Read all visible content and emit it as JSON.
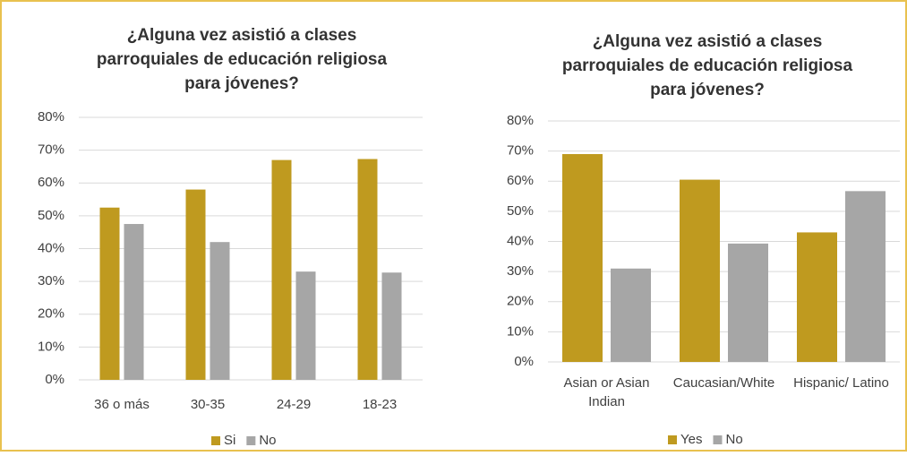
{
  "chart_data": [
    {
      "type": "bar",
      "title": "¿Alguna vez asistió a clases parroquiales de educación religiosa para jóvenes?",
      "categories": [
        "36 o más",
        "30-35",
        "24-29",
        "18-23"
      ],
      "series": [
        {
          "name": "Si",
          "color": "#bf9a1f",
          "values": [
            52.5,
            58,
            67,
            67.3
          ]
        },
        {
          "name": "No",
          "color": "#a6a6a6",
          "values": [
            47.5,
            42,
            33,
            32.7
          ]
        }
      ],
      "ylim": [
        0,
        80
      ],
      "yticks": [
        {
          "value": 0,
          "label": "0%"
        },
        {
          "value": 10,
          "label": "10%"
        },
        {
          "value": 20,
          "label": "20%"
        },
        {
          "value": 30,
          "label": "30%"
        },
        {
          "value": 40,
          "label": "40%"
        },
        {
          "value": 50,
          "label": "50%"
        },
        {
          "value": 60,
          "label": "60%"
        },
        {
          "value": 70,
          "label": "70%"
        },
        {
          "value": 80,
          "label": "80%"
        }
      ],
      "grid": true,
      "legend": "bottom"
    },
    {
      "type": "bar",
      "title": "¿Alguna vez asistió a clases parroquiales de educación religiosa para jóvenes?",
      "categories": [
        "Asian or Asian Indian",
        "Caucasian/White",
        "Hispanic/ Latino"
      ],
      "series": [
        {
          "name": "Yes",
          "color": "#bf9a1f",
          "values": [
            69,
            60.5,
            43
          ]
        },
        {
          "name": "No",
          "color": "#a6a6a6",
          "values": [
            31,
            39.3,
            56.7
          ]
        }
      ],
      "ylim": [
        0,
        80
      ],
      "yticks": [
        {
          "value": 0,
          "label": "0%"
        },
        {
          "value": 10,
          "label": "10%"
        },
        {
          "value": 20,
          "label": "20%"
        },
        {
          "value": 30,
          "label": "30%"
        },
        {
          "value": 40,
          "label": "40%"
        },
        {
          "value": 50,
          "label": "50%"
        },
        {
          "value": 60,
          "label": "60%"
        },
        {
          "value": 70,
          "label": "70%"
        },
        {
          "value": 80,
          "label": "80%"
        }
      ],
      "grid": true,
      "legend": "bottom"
    }
  ]
}
